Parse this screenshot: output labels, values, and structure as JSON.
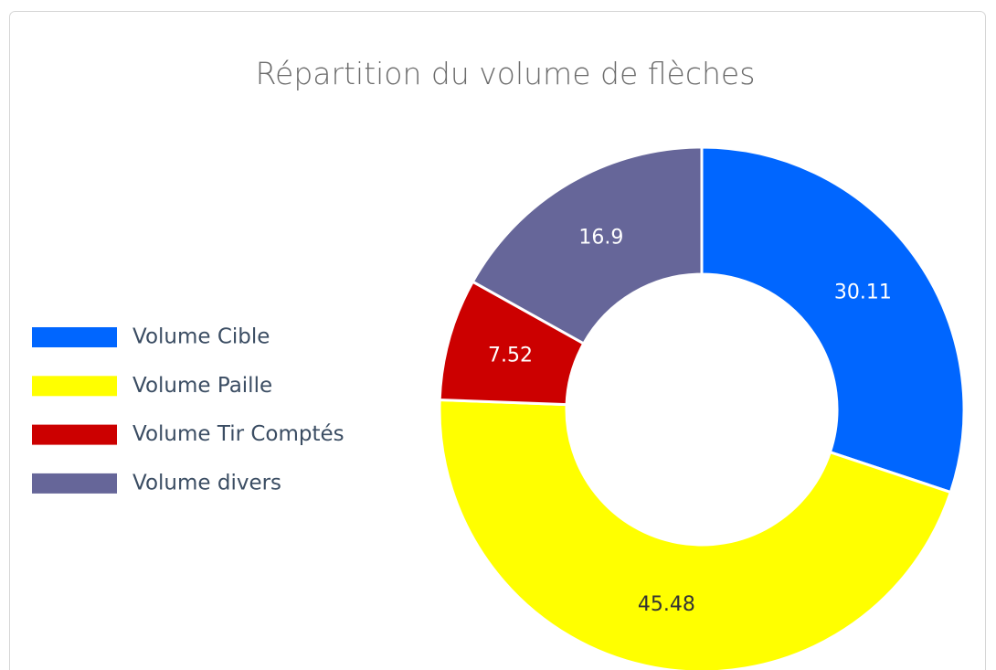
{
  "chart_data": {
    "type": "donut",
    "title": "Répartition du volume de flèches",
    "categories": [
      "Volume Cible",
      "Volume Paille",
      "Volume Tir Comptés",
      "Volume divers"
    ],
    "values": [
      30.11,
      45.48,
      7.52,
      16.9
    ],
    "colors": [
      "#0066ff",
      "#ffff00",
      "#cc0000",
      "#666699"
    ],
    "legend": "left"
  }
}
